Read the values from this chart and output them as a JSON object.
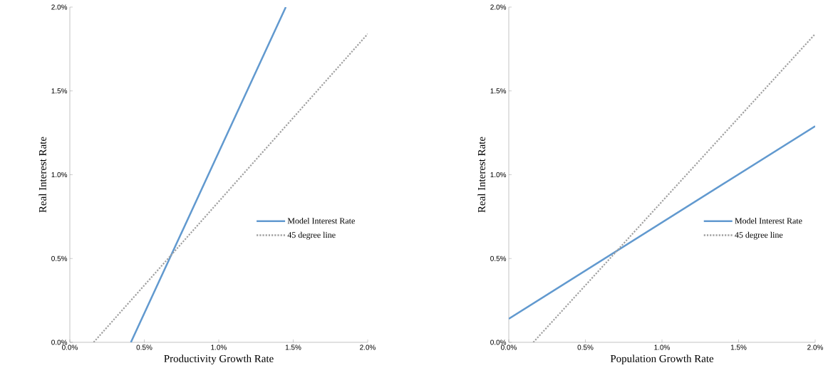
{
  "chart_data": [
    {
      "type": "line",
      "xlabel": "Productivity Growth Rate",
      "ylabel": "Real Interest Rate",
      "xlim": [
        0,
        2
      ],
      "ylim": [
        0,
        2
      ],
      "xticks": [
        {
          "value": 0,
          "label": "0.0%"
        },
        {
          "value": 0.5,
          "label": "0.5%"
        },
        {
          "value": 1,
          "label": "1.0%"
        },
        {
          "value": 1.5,
          "label": "1.5%"
        },
        {
          "value": 2,
          "label": "2.0%"
        }
      ],
      "yticks": [
        {
          "value": 0,
          "label": "0.0%"
        },
        {
          "value": 0.5,
          "label": "0.5%"
        },
        {
          "value": 1,
          "label": "1.0%"
        },
        {
          "value": 1.5,
          "label": "1.5%"
        },
        {
          "value": 2,
          "label": "2.0%"
        }
      ],
      "grid": false,
      "legend": "bottom right",
      "marker": "none",
      "series": [
        {
          "name": "Model Interest Rate",
          "color": "#6199cf",
          "line_style": "solid",
          "x": [
            0.41,
            1.45
          ],
          "values": [
            0,
            2
          ]
        },
        {
          "name": "45 degree line",
          "color": "#a0a0a0",
          "line_style": "dotted",
          "x": [
            0.16,
            2
          ],
          "values": [
            0,
            1.84
          ]
        }
      ]
    },
    {
      "type": "line",
      "xlabel": "Population Growth Rate",
      "ylabel": "Real Interest Rate",
      "xlim": [
        0,
        2
      ],
      "ylim": [
        0,
        2
      ],
      "xticks": [
        {
          "value": 0,
          "label": "0.0%"
        },
        {
          "value": 0.5,
          "label": "0.5%"
        },
        {
          "value": 1,
          "label": "1.0%"
        },
        {
          "value": 1.5,
          "label": "1.5%"
        },
        {
          "value": 2,
          "label": "2.0%"
        }
      ],
      "yticks": [
        {
          "value": 0,
          "label": "0.0%"
        },
        {
          "value": 0.5,
          "label": "0.5%"
        },
        {
          "value": 1,
          "label": "1.0%"
        },
        {
          "value": 1.5,
          "label": "1.5%"
        },
        {
          "value": 2,
          "label": "2.0%"
        }
      ],
      "grid": false,
      "legend": "bottom right",
      "marker": "none",
      "series": [
        {
          "name": "Model Interest Rate",
          "color": "#6199cf",
          "line_style": "solid",
          "x": [
            0,
            2
          ],
          "values": [
            0.14,
            1.29
          ]
        },
        {
          "name": "45 degree line",
          "color": "#a0a0a0",
          "line_style": "dotted",
          "x": [
            0.16,
            2
          ],
          "values": [
            0,
            1.84
          ]
        }
      ]
    }
  ]
}
